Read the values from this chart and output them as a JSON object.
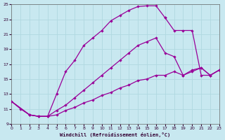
{
  "xlabel": "Windchill (Refroidissement éolien,°C)",
  "bg_color": "#c8e8f0",
  "line_color": "#990099",
  "grid_color": "#b0d8e0",
  "xmin": 0,
  "xmax": 23,
  "ymin": 9,
  "ymax": 25,
  "xticks": [
    0,
    1,
    2,
    3,
    4,
    5,
    6,
    7,
    8,
    9,
    10,
    11,
    12,
    13,
    14,
    15,
    16,
    17,
    18,
    19,
    20,
    21,
    22,
    23
  ],
  "yticks": [
    9,
    11,
    13,
    15,
    17,
    19,
    21,
    23,
    25
  ],
  "curve1_x": [
    0,
    1,
    2,
    3,
    4,
    5,
    6,
    7,
    8,
    9,
    10,
    11,
    12,
    13,
    14,
    15,
    16,
    17
  ],
  "curve1_y": [
    12.0,
    11.0,
    10.2,
    10.0,
    10.0,
    13.0,
    16.0,
    17.5,
    19.5,
    20.5,
    21.5,
    22.8,
    23.5,
    24.2,
    24.7,
    24.8,
    24.8,
    23.2
  ],
  "curve2_x": [
    17,
    18,
    19,
    20,
    21,
    22,
    23
  ],
  "curve2_y": [
    23.2,
    21.5,
    21.5,
    21.5,
    15.5,
    15.5,
    16.2
  ],
  "curve3_x": [
    0,
    2,
    3,
    4,
    5,
    6,
    7,
    8,
    9,
    10,
    11,
    12,
    13,
    14,
    15,
    16,
    17,
    18,
    19,
    20,
    21,
    22,
    23
  ],
  "curve3_y": [
    12.0,
    10.2,
    10.0,
    10.0,
    10.8,
    11.5,
    12.5,
    13.5,
    14.5,
    15.5,
    16.5,
    17.5,
    18.5,
    19.5,
    20.0,
    20.5,
    18.5,
    18.0,
    15.5,
    16.2,
    16.5,
    15.5,
    16.2
  ],
  "curve4_x": [
    0,
    2,
    3,
    4,
    5,
    6,
    7,
    8,
    9,
    10,
    11,
    12,
    13,
    14,
    15,
    16,
    17,
    18,
    19,
    20,
    21,
    22,
    23
  ],
  "curve4_y": [
    12.0,
    10.2,
    10.0,
    10.0,
    10.2,
    10.8,
    11.2,
    11.8,
    12.2,
    12.8,
    13.2,
    13.8,
    14.2,
    14.8,
    15.0,
    15.5,
    15.5,
    16.0,
    15.5,
    16.0,
    16.5,
    15.5,
    16.2
  ]
}
